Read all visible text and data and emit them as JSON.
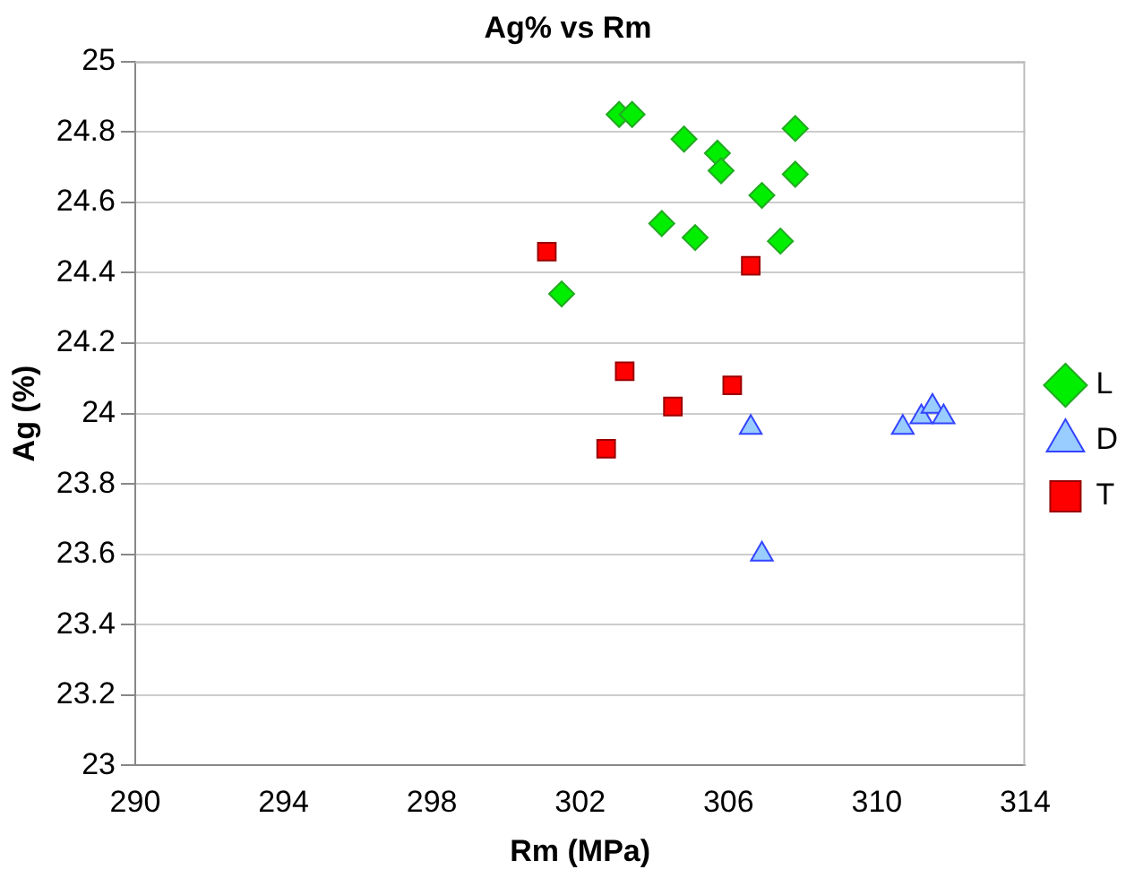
{
  "chart_data": {
    "type": "scatter",
    "title": "Ag% vs Rm",
    "xlabel": "Rm (MPa)",
    "ylabel": "Ag (%)",
    "xlim": [
      290,
      314
    ],
    "xticks": [
      290,
      294,
      298,
      302,
      306,
      310,
      314
    ],
    "ylim": [
      23,
      25
    ],
    "yticks": [
      23,
      23.2,
      23.4,
      23.6,
      23.8,
      24,
      24.2,
      24.4,
      24.6,
      24.8,
      25
    ],
    "grid": "y",
    "legend": "right",
    "series": [
      {
        "name": "L",
        "color": "#00ee00",
        "marker": "diamond",
        "x": [
          303.05,
          303.4,
          304.8,
          305.7,
          305.8,
          307.8,
          307.8,
          306.9,
          304.2,
          305.1,
          307.4,
          301.5
        ],
        "values": [
          24.85,
          24.85,
          24.78,
          24.74,
          24.69,
          24.81,
          24.68,
          24.62,
          24.54,
          24.5,
          24.49,
          24.34
        ]
      },
      {
        "name": "D",
        "color": "#99ccff",
        "marker": "triangle",
        "x": [
          306.6,
          306.9,
          310.7,
          311.2,
          311.5,
          311.8
        ],
        "values": [
          23.96,
          23.6,
          23.96,
          23.99,
          24.02,
          23.99
        ]
      },
      {
        "name": "T",
        "color": "#ff0000",
        "marker": "square",
        "x": [
          301.1,
          306.6,
          303.2,
          302.7,
          304.5,
          306.1
        ],
        "values": [
          24.46,
          24.42,
          24.12,
          23.9,
          24.02,
          24.08
        ]
      }
    ]
  }
}
